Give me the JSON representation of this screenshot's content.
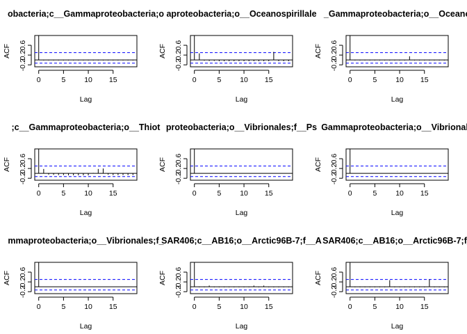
{
  "chart_data": [
    {
      "type": "bar",
      "title": "obacteria;c__Gammaproteobacteria;o",
      "xlabel": "Lag",
      "ylabel": "ACF",
      "xlim": [
        -0.8,
        19.8
      ],
      "ylim": [
        -0.28,
        1.0
      ],
      "x_ticks": [
        0,
        5,
        10,
        15
      ],
      "y_ticks": [
        -0.2,
        0.2,
        0.6
      ],
      "ci": [
        0.3,
        -0.13
      ],
      "lags": [
        0,
        1,
        2,
        3,
        4,
        5,
        6,
        7,
        8,
        9,
        10,
        11,
        12,
        13,
        14,
        15,
        16,
        17,
        18,
        19
      ],
      "acf": [
        1.0,
        -0.02,
        -0.02,
        -0.02,
        -0.02,
        -0.02,
        -0.02,
        -0.02,
        -0.02,
        -0.02,
        -0.02,
        -0.02,
        -0.02,
        -0.02,
        -0.02,
        -0.02,
        -0.02,
        -0.02,
        -0.02,
        -0.02
      ]
    },
    {
      "type": "bar",
      "title": "aproteobacteria;o__Oceanospirillale",
      "xlabel": "Lag",
      "ylabel": "ACF",
      "xlim": [
        -0.8,
        19.8
      ],
      "ylim": [
        -0.28,
        1.0
      ],
      "x_ticks": [
        0,
        5,
        10,
        15
      ],
      "y_ticks": [
        -0.2,
        0.2,
        0.6
      ],
      "ci": [
        0.3,
        -0.13
      ],
      "lags": [
        0,
        1,
        2,
        3,
        4,
        5,
        6,
        7,
        8,
        9,
        10,
        11,
        12,
        13,
        14,
        15,
        16,
        17,
        18,
        19
      ],
      "acf": [
        1.0,
        0.27,
        -0.03,
        -0.04,
        -0.04,
        -0.05,
        -0.05,
        -0.05,
        -0.05,
        -0.05,
        -0.05,
        -0.05,
        -0.05,
        -0.05,
        -0.05,
        -0.05,
        0.33,
        -0.05,
        -0.05,
        -0.05
      ]
    },
    {
      "type": "bar",
      "title": "_Gammaproteobacteria;o__Oceano",
      "xlabel": "Lag",
      "ylabel": "ACF",
      "xlim": [
        -0.8,
        19.8
      ],
      "ylim": [
        -0.28,
        1.0
      ],
      "x_ticks": [
        0,
        5,
        10,
        15
      ],
      "y_ticks": [
        -0.2,
        0.2,
        0.6
      ],
      "ci": [
        0.3,
        -0.13
      ],
      "lags": [
        0,
        1,
        2,
        3,
        4,
        5,
        6,
        7,
        8,
        9,
        10,
        11,
        12,
        13,
        14,
        15,
        16,
        17,
        18,
        19
      ],
      "acf": [
        1.0,
        -0.02,
        -0.02,
        -0.02,
        -0.02,
        -0.02,
        -0.02,
        -0.02,
        -0.02,
        -0.02,
        -0.02,
        -0.02,
        0.15,
        -0.02,
        -0.02,
        -0.02,
        -0.02,
        -0.02,
        -0.02,
        -0.02
      ]
    },
    {
      "type": "bar",
      "title": ";c__Gammaproteobacteria;o__Thiot",
      "xlabel": "Lag",
      "ylabel": "ACF",
      "xlim": [
        -0.8,
        19.8
      ],
      "ylim": [
        -0.28,
        1.0
      ],
      "x_ticks": [
        0,
        5,
        10,
        15
      ],
      "y_ticks": [
        -0.2,
        0.2,
        0.6
      ],
      "ci": [
        0.3,
        -0.13
      ],
      "lags": [
        0,
        1,
        2,
        3,
        4,
        5,
        6,
        7,
        8,
        9,
        10,
        11,
        12,
        13,
        14,
        15,
        16,
        17,
        18,
        19
      ],
      "acf": [
        1.0,
        0.18,
        -0.05,
        -0.06,
        -0.07,
        -0.07,
        -0.08,
        -0.08,
        -0.08,
        -0.08,
        -0.08,
        0.02,
        0.18,
        0.2,
        -0.05,
        -0.07,
        -0.07,
        -0.07,
        -0.07,
        -0.07
      ]
    },
    {
      "type": "bar",
      "title": "proteobacteria;o__Vibrionales;f__Ps",
      "xlabel": "Lag",
      "ylabel": "ACF",
      "xlim": [
        -0.8,
        19.8
      ],
      "ylim": [
        -0.28,
        1.0
      ],
      "x_ticks": [
        0,
        5,
        10,
        15
      ],
      "y_ticks": [
        -0.2,
        0.2,
        0.6
      ],
      "ci": [
        0.3,
        -0.13
      ],
      "lags": [
        0,
        1,
        2,
        3,
        4,
        5,
        6,
        7,
        8,
        9,
        10,
        11,
        12,
        13,
        14,
        15,
        16,
        17,
        18,
        19
      ],
      "acf": [
        1.0,
        -0.01,
        -0.01,
        -0.01,
        -0.01,
        -0.01,
        -0.01,
        -0.01,
        -0.01,
        -0.01,
        -0.01,
        -0.01,
        -0.01,
        -0.01,
        -0.01,
        -0.01,
        -0.01,
        -0.01,
        -0.01,
        -0.01
      ]
    },
    {
      "type": "bar",
      "title": "Gammaproteobacteria;o__Vibrionale",
      "xlabel": "Lag",
      "ylabel": "ACF",
      "xlim": [
        -0.8,
        19.8
      ],
      "ylim": [
        -0.28,
        1.0
      ],
      "x_ticks": [
        0,
        5,
        10,
        15
      ],
      "y_ticks": [
        -0.2,
        0.2,
        0.6
      ],
      "ci": [
        0.3,
        -0.13
      ],
      "lags": [
        0,
        1,
        2,
        3,
        4,
        5,
        6,
        7,
        8,
        9,
        10,
        11,
        12,
        13,
        14,
        15,
        16,
        17,
        18,
        19
      ],
      "acf": [
        1.0,
        -0.01,
        -0.01,
        -0.01,
        -0.01,
        -0.01,
        -0.01,
        -0.01,
        -0.01,
        -0.01,
        -0.01,
        -0.01,
        -0.01,
        -0.01,
        -0.01,
        -0.01,
        -0.01,
        -0.01,
        -0.01,
        -0.01
      ]
    },
    {
      "type": "bar",
      "title": "mmaproteobacteria;o__Vibrionales;f_",
      "xlabel": "Lag",
      "ylabel": "ACF",
      "xlim": [
        -0.8,
        19.8
      ],
      "ylim": [
        -0.28,
        1.0
      ],
      "x_ticks": [
        0,
        5,
        10,
        15
      ],
      "y_ticks": [
        -0.2,
        0.2,
        0.6
      ],
      "ci": [
        0.3,
        -0.13
      ],
      "lags": [
        0,
        1,
        2,
        3,
        4,
        5,
        6,
        7,
        8,
        9,
        10,
        11,
        12,
        13,
        14,
        15,
        16,
        17,
        18,
        19
      ],
      "acf": [
        1.0,
        -0.01,
        -0.01,
        -0.01,
        -0.01,
        -0.01,
        -0.01,
        -0.01,
        -0.01,
        -0.01,
        -0.01,
        -0.01,
        -0.01,
        -0.01,
        -0.01,
        -0.01,
        -0.01,
        -0.01,
        -0.01,
        -0.01
      ]
    },
    {
      "type": "bar",
      "title": "SAR406;c__AB16;o__Arctic96B-7;f__A",
      "xlabel": "Lag",
      "ylabel": "ACF",
      "xlim": [
        -0.8,
        19.8
      ],
      "ylim": [
        -0.28,
        1.0
      ],
      "x_ticks": [
        0,
        5,
        10,
        15
      ],
      "y_ticks": [
        -0.2,
        0.2,
        0.6
      ],
      "ci": [
        0.3,
        -0.13
      ],
      "lags": [
        0,
        1,
        2,
        3,
        4,
        5,
        6,
        7,
        8,
        9,
        10,
        11,
        12,
        13,
        14,
        15,
        16,
        17,
        18,
        19
      ],
      "acf": [
        1.0,
        -0.02,
        -0.02,
        0.05,
        -0.02,
        -0.02,
        -0.02,
        -0.02,
        -0.02,
        -0.02,
        -0.02,
        -0.02,
        0.05,
        -0.02,
        0.05,
        -0.02,
        -0.02,
        -0.02,
        -0.02,
        -0.02
      ]
    },
    {
      "type": "bar",
      "title": "SAR406;c__AB16;o__Arctic96B-7;f_",
      "xlabel": "Lag",
      "ylabel": "ACF",
      "xlim": [
        -0.8,
        19.8
      ],
      "ylim": [
        -0.28,
        1.0
      ],
      "x_ticks": [
        0,
        5,
        10,
        15
      ],
      "y_ticks": [
        -0.2,
        0.2,
        0.6
      ],
      "ci": [
        0.3,
        -0.13
      ],
      "lags": [
        0,
        1,
        2,
        3,
        4,
        5,
        6,
        7,
        8,
        9,
        10,
        11,
        12,
        13,
        14,
        15,
        16,
        17,
        18,
        19
      ],
      "acf": [
        1.0,
        -0.02,
        -0.02,
        -0.02,
        -0.02,
        -0.02,
        -0.02,
        -0.02,
        0.27,
        -0.02,
        -0.02,
        -0.02,
        -0.02,
        -0.02,
        -0.02,
        -0.02,
        0.3,
        -0.02,
        -0.02,
        -0.02
      ]
    }
  ],
  "colors": {
    "bars": "#000000",
    "frame": "#000000",
    "ci_line": "#0000ff",
    "zero_line": "#000000",
    "background": "#ffffff"
  }
}
